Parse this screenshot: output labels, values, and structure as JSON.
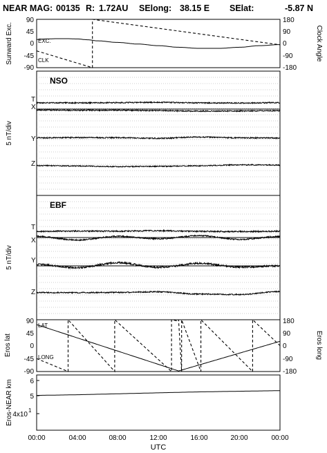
{
  "header": {
    "mission": "NEAR MAG:",
    "doy": "00135",
    "r_label": "R:",
    "r_value": "1.72AU",
    "selong_label": "SElong:",
    "selong_value": "38.15 E",
    "selat_label": "SElat:",
    "selat_value": "-5.87 N"
  },
  "x_axis": {
    "label": "UTC",
    "ticks": [
      "00:00",
      "04:00",
      "08:00",
      "12:00",
      "16:00",
      "20:00",
      "00:00"
    ],
    "range_hours": [
      0,
      24
    ]
  },
  "panels": {
    "angles": {
      "ylabel_left": "Sunward Exc.",
      "ylabel_right": "Clock Angle",
      "left_ticks": [
        "90",
        "45",
        "0",
        "-45",
        "-90"
      ],
      "right_ticks": [
        "180",
        "90",
        "0",
        "-90",
        "-180"
      ],
      "exc_label": "EXC.",
      "clk_label": "CLK"
    },
    "nso": {
      "name": "NSO",
      "ylabel": "5 nT/div",
      "trace_labels": [
        "T",
        "X",
        "Y",
        "Z"
      ]
    },
    "ebf": {
      "name": "EBF",
      "ylabel": "5 nT/div",
      "trace_labels": [
        "T",
        "X",
        "Y",
        "Z"
      ]
    },
    "eros": {
      "ylabel_left": "Eros lat",
      "ylabel_right": "Eros long",
      "left_ticks": [
        "90",
        "45",
        "0",
        "-45",
        "-90"
      ],
      "right_ticks": [
        "180",
        "90",
        "0",
        "-90",
        "-180"
      ],
      "lat_label": "LAT",
      "long_label": "LONG"
    },
    "distance": {
      "ylabel": "Eros-NEAR km",
      "ticks": [
        "6",
        "5",
        "4x10"
      ],
      "tick_superscript": "1"
    }
  },
  "chart_data": [
    {
      "type": "line",
      "title": "",
      "xlabel": "UTC",
      "ylabel": "Sunward Exc.",
      "ylim": [
        -90,
        90
      ],
      "y2label": "Clock Angle",
      "y2lim": [
        -180,
        180
      ],
      "series": [
        {
          "name": "EXC.",
          "axis": "left",
          "style": "solid",
          "x": [
            0,
            1,
            2,
            3,
            4,
            5,
            6,
            8,
            10,
            12,
            14,
            16,
            18,
            20,
            22,
            24
          ],
          "y": [
            15,
            17,
            18,
            18,
            17,
            14,
            10,
            4,
            -2,
            -8,
            -14,
            -18,
            -18,
            -14,
            -8,
            -4
          ]
        },
        {
          "name": "CLK",
          "axis": "right",
          "style": "dashed",
          "x": [
            0,
            5.5,
            5.5,
            24
          ],
          "y": [
            -55,
            -180,
            180,
            -10
          ]
        }
      ]
    },
    {
      "type": "line",
      "title": "NSO",
      "xlabel": "UTC",
      "ylabel": "5 nT/div",
      "series": [
        {
          "name": "T",
          "x": [
            0,
            4,
            8,
            12,
            16,
            20,
            24
          ],
          "y": [
            5.1,
            5.0,
            5.2,
            5.4,
            5.0,
            4.9,
            5.2
          ]
        },
        {
          "name": "X",
          "x": [
            0,
            4,
            8,
            12,
            16,
            20,
            24
          ],
          "y": [
            -0.8,
            -1.0,
            -0.9,
            -1.2,
            -1.6,
            -1.5,
            -1.3
          ]
        },
        {
          "name": "Y",
          "x": [
            0,
            4,
            8,
            12,
            16,
            20,
            24
          ],
          "y": [
            0.8,
            1.0,
            0.9,
            0.4,
            1.4,
            0.8,
            0.6
          ]
        },
        {
          "name": "Z",
          "x": [
            0,
            4,
            8,
            12,
            16,
            20,
            24
          ],
          "y": [
            -1.0,
            -1.3,
            -1.8,
            -1.6,
            -1.2,
            -0.4,
            -0.6
          ]
        }
      ]
    },
    {
      "type": "line",
      "title": "EBF",
      "xlabel": "UTC",
      "ylabel": "5 nT/div",
      "series": [
        {
          "name": "T",
          "x": [
            0,
            4,
            8,
            12,
            16,
            20,
            24
          ],
          "y": [
            5.0,
            5.2,
            5.1,
            5.5,
            5.0,
            4.8,
            5.1
          ]
        },
        {
          "name": "X",
          "x": [
            0,
            4,
            8,
            12,
            16,
            20,
            24
          ],
          "y": [
            1.0,
            -2.0,
            1.0,
            -1.0,
            1.5,
            -1.5,
            0.8
          ]
        },
        {
          "name": "Y",
          "x": [
            0,
            4,
            8,
            12,
            16,
            20,
            24
          ],
          "y": [
            1.2,
            -1.5,
            2.5,
            -1.2,
            2.0,
            -1.0,
            0.0
          ]
        },
        {
          "name": "Z",
          "x": [
            0,
            4,
            8,
            12,
            16,
            20,
            24
          ],
          "y": [
            0.2,
            0.1,
            0.3,
            0.8,
            -1.0,
            -1.4,
            1.0
          ]
        }
      ]
    },
    {
      "type": "line",
      "title": "",
      "xlabel": "UTC",
      "ylabel": "Eros lat",
      "ylim": [
        -90,
        90
      ],
      "y2label": "Eros long",
      "y2lim": [
        -180,
        180
      ],
      "series": [
        {
          "name": "LAT",
          "axis": "left",
          "style": "solid",
          "x": [
            0,
            14,
            24
          ],
          "y": [
            73,
            -88,
            15
          ]
        },
        {
          "name": "LONG",
          "axis": "right",
          "style": "dashed",
          "x": [
            0,
            3.1,
            3.1,
            7.7,
            7.7,
            13.3,
            13.3,
            14.0,
            14.0,
            14.3,
            14.3,
            16.2,
            16.2,
            21.3,
            21.3,
            24
          ],
          "y": [
            -90,
            -180,
            180,
            -180,
            180,
            -180,
            180,
            170,
            180,
            -180,
            180,
            -180,
            180,
            -180,
            180,
            0
          ]
        }
      ]
    },
    {
      "type": "line",
      "title": "",
      "xlabel": "UTC",
      "ylabel": "Eros-NEAR km",
      "yscale": "log",
      "series": [
        {
          "name": "",
          "x": [
            0,
            4,
            8,
            12,
            16,
            20,
            24
          ],
          "y": [
            50,
            50.4,
            51,
            51.6,
            52.2,
            52.6,
            53
          ]
        }
      ]
    }
  ]
}
